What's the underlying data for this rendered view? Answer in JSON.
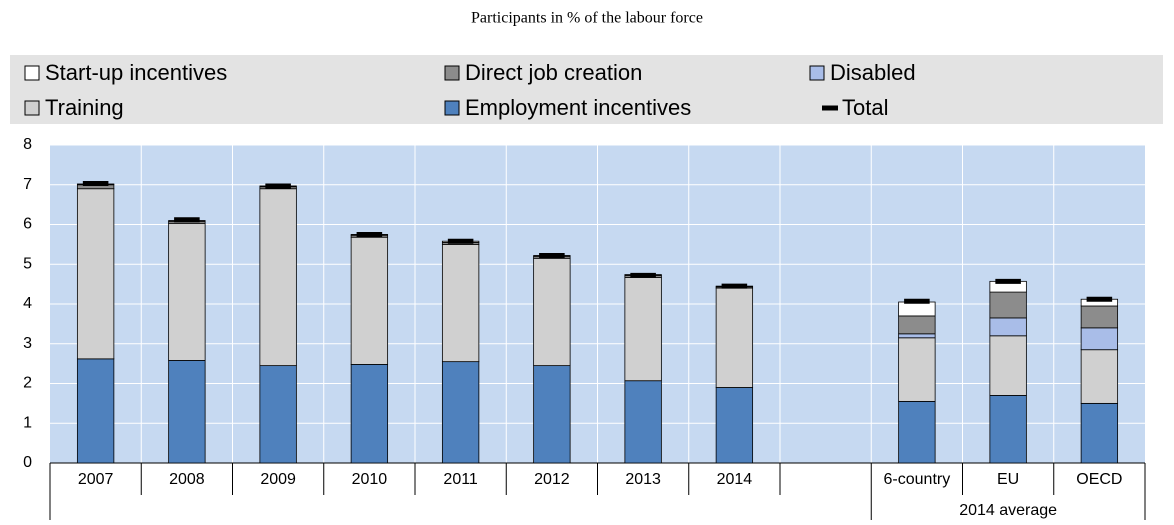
{
  "chart_data": {
    "type": "stacked_bar",
    "title": "Participants in % of the labour force",
    "categories": [
      "2007",
      "2008",
      "2009",
      "2010",
      "2011",
      "2012",
      "2013",
      "2014",
      null,
      "6-country",
      "EU",
      "OECD"
    ],
    "group_label": "2014 average",
    "series": [
      {
        "name": "Employment incentives",
        "color": "#4f81bd",
        "values": [
          2.62,
          2.58,
          2.45,
          2.48,
          2.55,
          2.45,
          2.07,
          1.9,
          null,
          1.55,
          1.7,
          1.5
        ]
      },
      {
        "name": "Training",
        "color": "#d0d0d0",
        "values": [
          4.28,
          3.45,
          4.45,
          3.2,
          2.95,
          2.7,
          2.6,
          2.5,
          null,
          1.6,
          1.5,
          1.35
        ]
      },
      {
        "name": "Disabled",
        "color": "#a9bde8",
        "values": [
          0,
          0,
          0,
          0,
          0,
          0,
          0,
          0,
          null,
          0.1,
          0.45,
          0.55
        ]
      },
      {
        "name": "Direct job creation",
        "color": "#8c8c8c",
        "values": [
          0.1,
          0.05,
          0.05,
          0.05,
          0.05,
          0.05,
          0.05,
          0.03,
          null,
          0.45,
          0.65,
          0.55
        ]
      },
      {
        "name": "Start-up incentives",
        "color": "#ffffff",
        "values": [
          0.02,
          0.02,
          0.02,
          0.02,
          0.03,
          0.02,
          0.02,
          0.02,
          null,
          0.35,
          0.27,
          0.17
        ]
      }
    ],
    "total": {
      "name": "Total",
      "color": "#000000",
      "values": [
        7.03,
        6.12,
        6.97,
        5.75,
        5.58,
        5.22,
        4.72,
        4.45,
        null,
        4.07,
        4.57,
        4.12
      ]
    },
    "ylim": [
      0,
      8
    ],
    "yticks": [
      0,
      1,
      2,
      3,
      4,
      5,
      6,
      7,
      8
    ],
    "grid": true
  }
}
